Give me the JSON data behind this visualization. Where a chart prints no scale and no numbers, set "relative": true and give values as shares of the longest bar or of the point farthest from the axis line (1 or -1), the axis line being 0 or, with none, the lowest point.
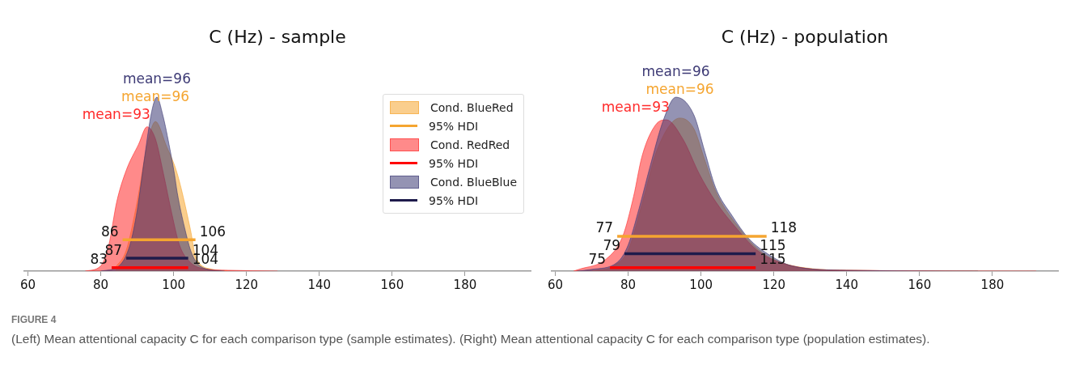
{
  "chart_data": [
    {
      "type": "area",
      "title": "C (Hz) - sample",
      "relative": true,
      "xlim": [
        59,
        198
      ],
      "xticks": [
        60,
        80,
        100,
        120,
        140,
        160,
        180
      ],
      "legend": "top right",
      "series": [
        {
          "name": "Cond. BlueRed",
          "color": "#f5a530",
          "x": [
            84,
            87,
            90,
            93,
            95,
            98,
            101,
            104.6,
            106.1,
            110.6,
            115
          ],
          "values": [
            0.02,
            0.12,
            0.4,
            0.75,
            0.86,
            0.72,
            0.56,
            0.24,
            0.08,
            0.01,
            0
          ]
        },
        {
          "name": "95% HDI",
          "type": "line",
          "color": "#f5a530",
          "x": [
            86,
            106
          ],
          "values": [
            0.18,
            0.18
          ]
        },
        {
          "name": "Cond. RedRed",
          "color": "#ff2a2a",
          "x": [
            75.7,
            80,
            82.2,
            84.4,
            87,
            90.4,
            92.7,
            95,
            97.2,
            99.5,
            101.6,
            104.6,
            108,
            115,
            128.5
          ],
          "values": [
            0,
            0.03,
            0.15,
            0.4,
            0.58,
            0.73,
            0.83,
            0.76,
            0.56,
            0.33,
            0.15,
            0.05,
            0.015,
            0.005,
            0
          ]
        },
        {
          "name": "95% HDI",
          "type": "line",
          "color": "#ff0000",
          "x": [
            83,
            104
          ],
          "values": [
            0.02,
            0.02
          ]
        },
        {
          "name": "Cond. BlueBlue",
          "color": "#3d3a75",
          "x": [
            80,
            85,
            88,
            90,
            92,
            94,
            95.4,
            97,
            99,
            100.2,
            101,
            103,
            105,
            108,
            114
          ],
          "values": [
            0,
            0.03,
            0.15,
            0.35,
            0.65,
            0.92,
            1,
            0.9,
            0.7,
            0.56,
            0.45,
            0.25,
            0.1,
            0.02,
            0
          ]
        },
        {
          "name": "95% HDI",
          "type": "line",
          "color": "#1e1b4b",
          "x": [
            87,
            104
          ],
          "values": [
            0.074,
            0.074
          ]
        }
      ],
      "annotations": [
        "mean=96",
        "mean=93",
        "mean=96",
        {
          "text": "86",
          "x": 86,
          "y": 0.18
        },
        {
          "text": "106",
          "x": 106,
          "y": 0.18
        },
        {
          "text": "83",
          "x": 83,
          "y": 0.02
        },
        {
          "text": "104",
          "x": 104,
          "y": 0.02
        },
        {
          "text": "87",
          "x": 87,
          "y": 0.074
        },
        {
          "text": "104",
          "x": 104,
          "y": 0.074
        },
        "FIGURE 4",
        "(Left) Mean attentional capacity C for each comparison type (sample estimates). (Right) Mean attentional capacity C for each comparison type (population estimates)."
      ]
    },
    {
      "type": "area",
      "title": "C (Hz) - population",
      "relative": true,
      "xlim": [
        59,
        198
      ],
      "xticks": [
        60,
        80,
        100,
        120,
        140,
        160,
        180
      ],
      "series": [
        {
          "color": "#f5a530",
          "x": [
            70,
            76,
            80,
            84,
            88,
            94.2,
            98,
            101,
            104,
            110,
            116,
            122,
            130,
            140,
            176
          ],
          "values": [
            0,
            0.03,
            0.12,
            0.4,
            0.7,
            0.88,
            0.82,
            0.64,
            0.46,
            0.26,
            0.12,
            0.05,
            0.015,
            0.005,
            0
          ]
        },
        {
          "type": "line",
          "color": "#f5a530",
          "x": [
            77,
            118
          ],
          "values": [
            0.2,
            0.2
          ]
        },
        {
          "color": "#ff2a2a",
          "x": [
            65,
            66.5,
            74,
            78.5,
            81.5,
            83.8,
            87.5,
            90.5,
            95,
            99.5,
            104,
            110,
            116,
            125,
            140,
            192
          ],
          "values": [
            0,
            0.01,
            0.07,
            0.2,
            0.43,
            0.66,
            0.84,
            0.87,
            0.76,
            0.56,
            0.4,
            0.24,
            0.11,
            0.03,
            0.005,
            0
          ]
        },
        {
          "type": "line",
          "color": "#ff0000",
          "x": [
            75,
            115
          ],
          "values": [
            0.02,
            0.02
          ]
        },
        {
          "color": "#3d3a75",
          "x": [
            66,
            70,
            77,
            80,
            83,
            86,
            89.7,
            93.1,
            98,
            101,
            104,
            108.5,
            113,
            119,
            125,
            140,
            176
          ],
          "values": [
            0,
            0.01,
            0.05,
            0.15,
            0.36,
            0.6,
            0.87,
            1,
            0.9,
            0.69,
            0.48,
            0.32,
            0.19,
            0.09,
            0.03,
            0.005,
            0
          ]
        },
        {
          "type": "line",
          "color": "#1e1b4b",
          "x": [
            79,
            115
          ],
          "values": [
            0.1,
            0.1
          ]
        }
      ],
      "annotations": [
        "mean=96",
        "mean=93",
        "mean=96",
        {
          "text": "77",
          "x": 77,
          "y": 0.2
        },
        {
          "text": "118",
          "x": 118,
          "y": 0.2
        },
        {
          "text": "75",
          "x": 75,
          "y": 0.02
        },
        {
          "text": "115",
          "x": 115,
          "y": 0.02
        },
        {
          "text": "79",
          "x": 79,
          "y": 0.1
        },
        {
          "text": "115",
          "x": 115,
          "y": 0.1
        }
      ]
    }
  ]
}
